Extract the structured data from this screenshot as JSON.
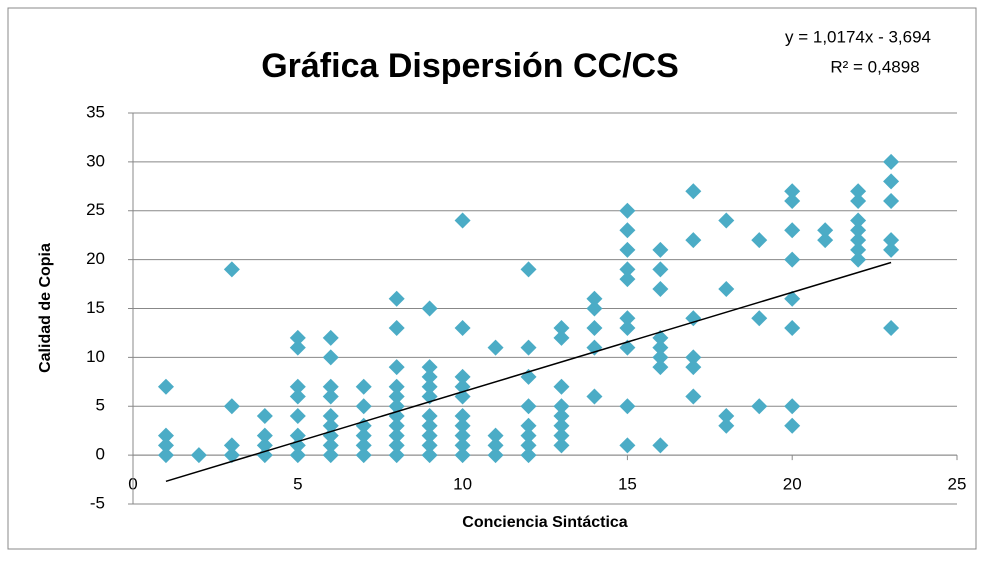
{
  "chart_data": {
    "type": "scatter",
    "title": "Gráfica Dispersión CC/CS",
    "xlabel": "Conciencia Sintáctica",
    "ylabel": "Calidad de Copia",
    "annotations": [
      "y = 1,0174x - 3,694",
      "R² = 0,4898"
    ],
    "series": [
      {
        "name": "CC/CS",
        "color": "#4bacc6",
        "x": [
          1,
          1,
          1,
          1,
          2,
          3,
          3,
          3,
          3,
          4,
          4,
          4,
          4,
          5,
          5,
          5,
          5,
          5,
          5,
          5,
          5,
          6,
          6,
          6,
          6,
          6,
          6,
          6,
          6,
          6,
          7,
          7,
          7,
          7,
          7,
          7,
          8,
          8,
          8,
          8,
          8,
          8,
          8,
          8,
          8,
          8,
          8,
          9,
          9,
          9,
          9,
          9,
          9,
          9,
          9,
          9,
          9,
          10,
          10,
          10,
          10,
          10,
          10,
          10,
          10,
          10,
          10,
          11,
          11,
          11,
          11,
          12,
          12,
          12,
          12,
          12,
          12,
          12,
          12,
          13,
          13,
          13,
          13,
          13,
          13,
          13,
          13,
          14,
          14,
          14,
          14,
          14,
          15,
          15,
          15,
          15,
          15,
          15,
          15,
          15,
          15,
          15,
          16,
          16,
          16,
          16,
          16,
          16,
          16,
          16,
          17,
          17,
          17,
          17,
          17,
          17,
          18,
          18,
          18,
          18,
          19,
          19,
          19,
          20,
          20,
          20,
          20,
          20,
          20,
          20,
          20,
          21,
          21,
          22,
          22,
          22,
          22,
          22,
          22,
          22,
          23,
          23,
          23,
          23,
          23,
          23
        ],
        "values": [
          7,
          2,
          1,
          0,
          0,
          19,
          5,
          1,
          0,
          4,
          2,
          1,
          0,
          12,
          11,
          7,
          6,
          4,
          2,
          1,
          0,
          12,
          10,
          7,
          6,
          4,
          3,
          2,
          1,
          0,
          7,
          5,
          3,
          2,
          1,
          0,
          16,
          13,
          9,
          7,
          6,
          5,
          4,
          3,
          2,
          1,
          0,
          15,
          9,
          8,
          7,
          6,
          4,
          3,
          2,
          1,
          0,
          24,
          13,
          8,
          7,
          6,
          4,
          3,
          2,
          1,
          0,
          11,
          2,
          1,
          0,
          19,
          11,
          8,
          5,
          3,
          2,
          1,
          0,
          13,
          12,
          7,
          5,
          4,
          3,
          2,
          1,
          16,
          15,
          13,
          11,
          6,
          25,
          23,
          21,
          19,
          18,
          14,
          13,
          11,
          5,
          1,
          21,
          19,
          17,
          12,
          11,
          10,
          9,
          1,
          27,
          22,
          14,
          10,
          9,
          6,
          24,
          17,
          4,
          3,
          22,
          14,
          5,
          27,
          26,
          23,
          20,
          16,
          13,
          5,
          3,
          23,
          22,
          27,
          26,
          24,
          23,
          22,
          21,
          20,
          30,
          28,
          26,
          22,
          21,
          13
        ]
      }
    ],
    "trendline": {
      "x": [
        1,
        23
      ],
      "values": [
        -2.6766,
        19.7062
      ],
      "color": "#000000"
    },
    "xlim": [
      0,
      25
    ],
    "xticks": [
      0,
      5,
      10,
      15,
      20,
      25
    ],
    "ylim": [
      -5,
      35
    ],
    "yticks": [
      -5,
      0,
      5,
      10,
      15,
      20,
      25,
      30,
      35
    ],
    "grid": true
  }
}
